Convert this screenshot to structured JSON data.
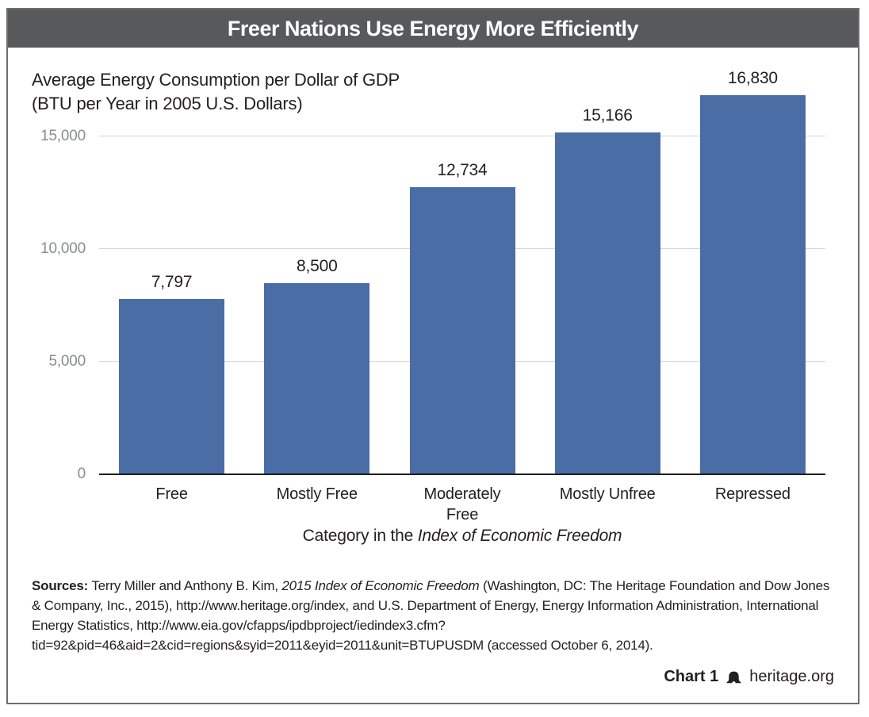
{
  "header": {
    "title": "Freer Nations Use Energy More Efficiently"
  },
  "chart_data": {
    "type": "bar",
    "title": "Average Energy Consumption per Dollar of GDP (BTU per Year in 2005 U.S. Dollars)",
    "title_line1": "Average Energy Consumption per Dollar of GDP",
    "title_line2": "(BTU per Year in 2005 U.S. Dollars)",
    "categories": [
      "Free",
      "Mostly Free",
      "Moderately\nFree",
      "Mostly Unfree",
      "Repressed"
    ],
    "values": [
      7797,
      8500,
      12734,
      15166,
      16830
    ],
    "value_labels": [
      "7,797",
      "8,500",
      "12,734",
      "15,166",
      "16,830"
    ],
    "yticks": [
      0,
      5000,
      10000,
      15000
    ],
    "ytick_labels": [
      "0",
      "5,000",
      "10,000",
      "15,000"
    ],
    "ylim": [
      0,
      17500
    ],
    "xlabel": "Category in the Index of Economic Freedom",
    "xlabel_prefix": "Category in the ",
    "xlabel_italic": "Index of Economic Freedom",
    "grid": true,
    "legend_position": "none",
    "bar_color": "#4a6da6"
  },
  "sources": {
    "label": "Sources:",
    "seg1": " Terry Miller and Anthony B. Kim, ",
    "italic": "2015 Index of Economic Freedom",
    "seg2": " (Washington, DC: The Heritage Foundation and Dow Jones & Company, Inc., 2015), http://www.heritage.org/index, and U.S. Department of Energy, Energy Information Administration, International Energy Statistics, http://www.eia.gov/cfapps/ipdbproject/iedindex3.cfm?tid=92&pid=46&aid=2&cid=regions&syid=2011&eyid=2011&unit=BTUPUSDM (accessed October 6, 2014)."
  },
  "footer": {
    "chart_number": "Chart 1",
    "site": "heritage.org"
  }
}
